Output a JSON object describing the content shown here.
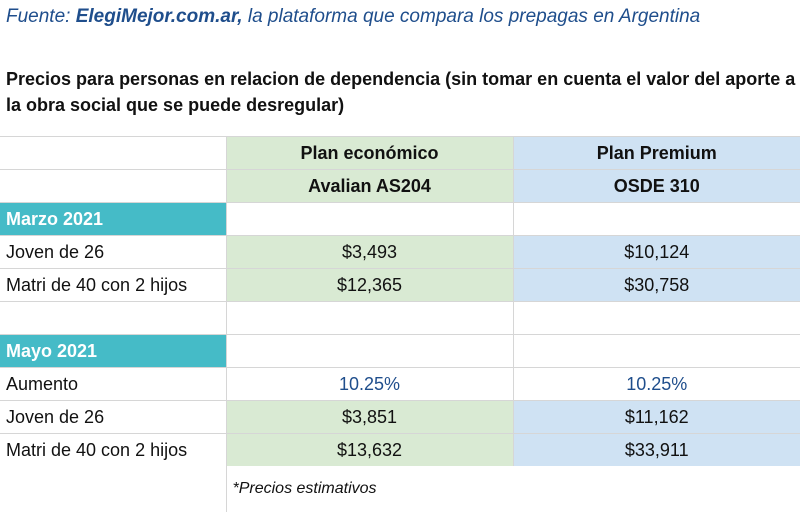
{
  "source": {
    "prefix": "Fuente: ",
    "site": "ElegiMejor.com.ar,",
    "rest": " la plataforma que compara los prepagas en Argentina"
  },
  "subtitle": "Precios para personas en relacion de dependencia (sin tomar en cuenta el valor del aporte a la obra social que se puede desregular)",
  "plans": [
    {
      "title": "Plan económico",
      "name": "Avalian AS204"
    },
    {
      "title": "Plan Premium",
      "name": "OSDE 310"
    }
  ],
  "periods": [
    {
      "label": "Marzo 2021",
      "rows": [
        {
          "label": "Joven de 26",
          "values": [
            "$3,493",
            "$10,124"
          ]
        },
        {
          "label": "Matri de 40 con 2 hijos",
          "values": [
            "$12,365",
            "$30,758"
          ]
        }
      ]
    },
    {
      "label": "Mayo 2021",
      "increase": {
        "label": "Aumento",
        "values": [
          "10.25%",
          "10.25%"
        ]
      },
      "rows": [
        {
          "label": "Joven de 26",
          "values": [
            "$3,851",
            "$11,162"
          ]
        },
        {
          "label": "Matri de 40 con 2 hijos",
          "values": [
            "$13,632",
            "$33,911"
          ]
        }
      ]
    }
  ],
  "footnote": "*Precios estimativos",
  "colors": {
    "plan1_bg": "#d9ead3",
    "plan2_bg": "#cfe2f3",
    "period_bg": "#45bbc7",
    "source_text": "#1f4e8c"
  }
}
